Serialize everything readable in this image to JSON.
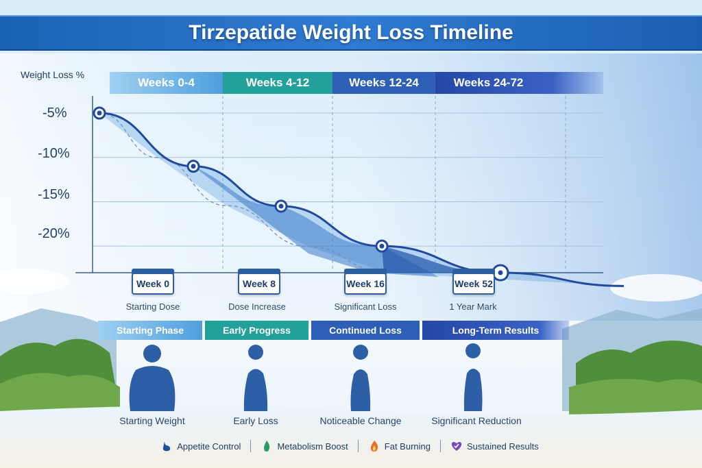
{
  "title": "Tirzepatide Weight Loss Timeline",
  "colors": {
    "title_bar": "#1f63b3",
    "phase1": "#5aa8e0",
    "phase2": "#24a09a",
    "phase3": "#2c5fb5",
    "phase4": "#2447a8",
    "curve": "#1f4a9e"
  },
  "chart_data": {
    "type": "line",
    "ylabel": "Weight Loss %",
    "yticks": [
      "-5%",
      "-10%",
      "-15%",
      "-20%"
    ],
    "ylim": [
      -23,
      -3
    ],
    "x_labels": [
      "Week 0",
      "Week 8",
      "Week 16",
      "Week 52"
    ],
    "series": [
      {
        "values": [
          -5,
          -11,
          -15.5,
          -20,
          -23
        ]
      }
    ],
    "grid": true
  },
  "phases": [
    "Weeks 0-4",
    "Weeks 4-12",
    "Weeks 12-24",
    "Weeks 24-72"
  ],
  "milestones": [
    {
      "week": "Week 0",
      "label": "Starting Dose"
    },
    {
      "week": "Week 8",
      "label": "Dose Increase"
    },
    {
      "week": "Week 16",
      "label": "Significant Loss"
    },
    {
      "week": "Week 52",
      "label": "1 Year Mark"
    }
  ],
  "stages": [
    {
      "title": "Starting Phase",
      "caption": "Starting Weight"
    },
    {
      "title": "Early Progress",
      "caption": "Early Loss"
    },
    {
      "title": "Continued Loss",
      "caption": "Noticeable Change"
    },
    {
      "title": "Long-Term Results",
      "caption": "Significant Reduction"
    }
  ],
  "benefits": [
    {
      "label": "Appetite Control",
      "icon": "stomach-icon"
    },
    {
      "label": "Metabolism Boost",
      "icon": "flame-icon"
    },
    {
      "label": "Fat Burning",
      "icon": "fire-icon"
    },
    {
      "label": "Sustained Results",
      "icon": "heart-icon"
    }
  ]
}
